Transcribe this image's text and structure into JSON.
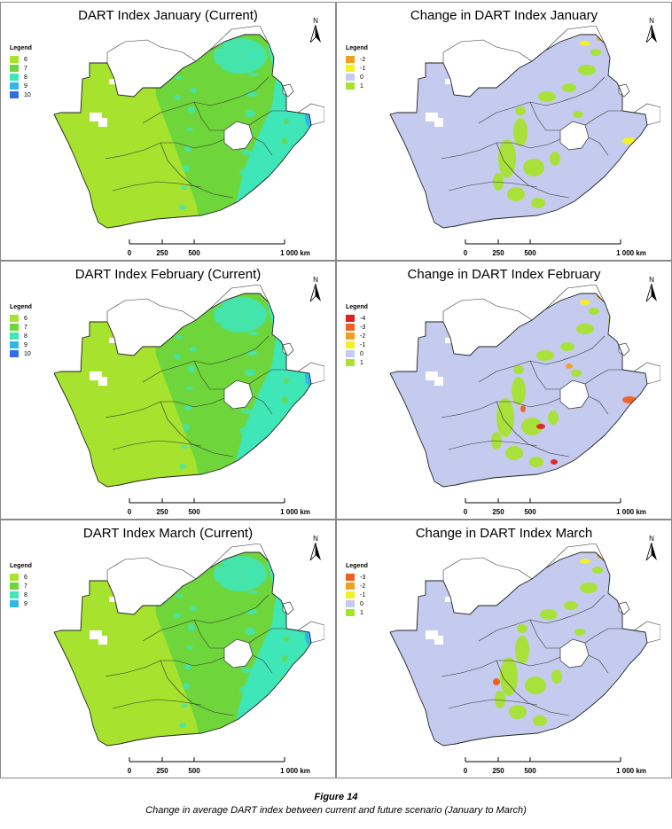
{
  "panels": [
    {
      "title": "DART Index January (Current)",
      "kind": "current",
      "legend": {
        "heading": "Legend",
        "items": [
          {
            "label": "6",
            "color": "#a6e22e"
          },
          {
            "label": "7",
            "color": "#6ed63a"
          },
          {
            "label": "8",
            "color": "#3fe6b8"
          },
          {
            "label": "9",
            "color": "#2fb8e6"
          },
          {
            "label": "10",
            "color": "#2f6ee6"
          }
        ]
      }
    },
    {
      "title": "Change in DART Index January",
      "kind": "change",
      "legend": {
        "heading": "Legend",
        "items": [
          {
            "label": "-2",
            "color": "#f0a020"
          },
          {
            "label": "-1",
            "color": "#f5f020"
          },
          {
            "label": "0",
            "color": "#c4cbee"
          },
          {
            "label": "1",
            "color": "#a6e22e"
          }
        ]
      }
    },
    {
      "title": "DART Index February (Current)",
      "kind": "current",
      "legend": {
        "heading": "Legend",
        "items": [
          {
            "label": "6",
            "color": "#a6e22e"
          },
          {
            "label": "7",
            "color": "#6ed63a"
          },
          {
            "label": "8",
            "color": "#3fe6b8"
          },
          {
            "label": "9",
            "color": "#2fb8e6"
          },
          {
            "label": "10",
            "color": "#2f6ee6"
          }
        ]
      }
    },
    {
      "title": "Change in DART Index February",
      "kind": "change",
      "legend": {
        "heading": "Legend",
        "items": [
          {
            "label": "-4",
            "color": "#e02020"
          },
          {
            "label": "-3",
            "color": "#f06020"
          },
          {
            "label": "-2",
            "color": "#f0a020"
          },
          {
            "label": "-1",
            "color": "#f5f020"
          },
          {
            "label": "0",
            "color": "#c4cbee"
          },
          {
            "label": "1",
            "color": "#a6e22e"
          }
        ]
      }
    },
    {
      "title": "DART Index March (Current)",
      "kind": "current",
      "legend": {
        "heading": "Legend",
        "items": [
          {
            "label": "6",
            "color": "#a6e22e"
          },
          {
            "label": "7",
            "color": "#6ed63a"
          },
          {
            "label": "8",
            "color": "#3fe6b8"
          },
          {
            "label": "9",
            "color": "#2fb8e6"
          }
        ]
      }
    },
    {
      "title": "Change in DART Index March",
      "kind": "change",
      "legend": {
        "heading": "Legend",
        "items": [
          {
            "label": "-3",
            "color": "#f06020"
          },
          {
            "label": "-2",
            "color": "#f0a020"
          },
          {
            "label": "-1",
            "color": "#f5f020"
          },
          {
            "label": "0",
            "color": "#c4cbee"
          },
          {
            "label": "1",
            "color": "#a6e22e"
          }
        ]
      }
    }
  ],
  "north_label": "N",
  "scale_labels": [
    "0",
    "250",
    "500",
    "1 000 km"
  ],
  "figure_label": "Figure 14",
  "caption": "Change in average DART index between current and future scenario (January to March)"
}
